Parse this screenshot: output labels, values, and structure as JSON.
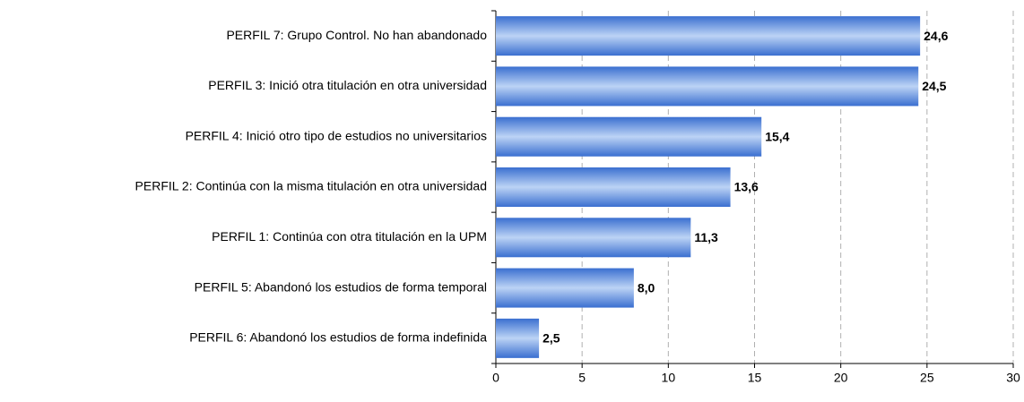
{
  "chart_data": {
    "type": "bar",
    "orientation": "horizontal",
    "categories": [
      "PERFIL 7: Grupo Control. No han abandonado",
      "PERFIL 3: Inició otra titulación en otra universidad",
      "PERFIL 4: Inició otro tipo de estudios no universitarios",
      "PERFIL 2: Continúa con la misma titulación en otra universidad",
      "PERFIL 1: Continúa con otra titulación en la UPM",
      "PERFIL 5: Abandonó los estudios de forma temporal",
      "PERFIL 6: Abandonó los estudios de forma indefinida"
    ],
    "values": [
      24.6,
      24.5,
      15.4,
      13.6,
      11.3,
      8.0,
      2.5
    ],
    "value_labels": [
      "24,6",
      "24,5",
      "15,4",
      "13,6",
      "11,3",
      "8,0",
      "2,5"
    ],
    "color": "#3a6fd0",
    "xlim": [
      0,
      30
    ],
    "xticks": [
      0,
      5,
      10,
      15,
      20,
      25,
      30
    ],
    "grid": true
  }
}
